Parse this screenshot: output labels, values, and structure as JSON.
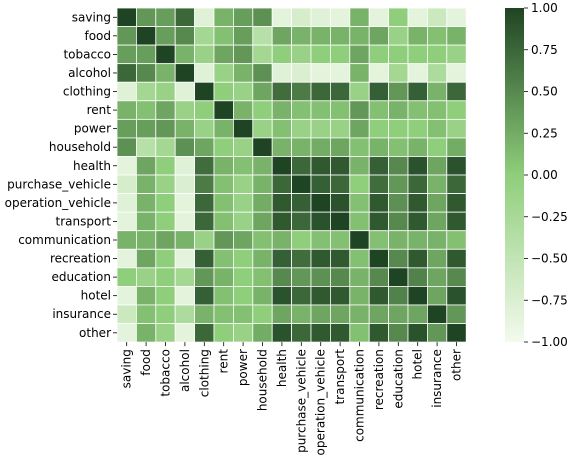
{
  "chart_data": {
    "type": "heatmap",
    "title": "",
    "xlabel": "",
    "ylabel": "",
    "labels": [
      "saving",
      "food",
      "tobacco",
      "alcohol",
      "clothing",
      "rent",
      "power",
      "household",
      "health",
      "purchase_vehicle",
      "operation_vehicle",
      "transport",
      "communication",
      "recreation",
      "education",
      "hotel",
      "insurance",
      "other"
    ],
    "matrix": [
      [
        1.0,
        0.4,
        0.35,
        0.75,
        -0.8,
        0.2,
        0.35,
        0.45,
        -0.85,
        -0.7,
        -0.8,
        -0.85,
        0.2,
        -0.85,
        0.0,
        -0.85,
        -0.6,
        -0.85
      ],
      [
        0.4,
        1.0,
        0.35,
        0.5,
        -0.2,
        0.1,
        0.35,
        -0.4,
        0.3,
        0.2,
        0.2,
        0.2,
        0.2,
        0.3,
        -0.1,
        0.2,
        0.1,
        0.2
      ],
      [
        0.35,
        0.35,
        1.0,
        0.2,
        -0.1,
        0.3,
        0.4,
        -0.2,
        0.0,
        -0.1,
        0.0,
        0.0,
        0.3,
        0.0,
        0.0,
        0.0,
        0.0,
        -0.1
      ],
      [
        0.75,
        0.5,
        0.2,
        1.0,
        -0.8,
        -0.1,
        0.2,
        0.45,
        -0.8,
        -0.75,
        -0.85,
        -0.85,
        0.2,
        -0.85,
        -0.2,
        -0.85,
        -0.3,
        -0.85
      ],
      [
        -0.8,
        -0.2,
        -0.1,
        -0.8,
        1.0,
        0.0,
        -0.1,
        0.3,
        0.7,
        0.6,
        0.75,
        0.75,
        -0.1,
        0.8,
        0.4,
        0.8,
        0.2,
        0.75
      ],
      [
        0.2,
        0.1,
        0.3,
        -0.1,
        0.0,
        1.0,
        0.2,
        0.0,
        0.2,
        0.1,
        0.1,
        0.1,
        0.4,
        0.1,
        0.2,
        0.1,
        0.1,
        0.0
      ],
      [
        0.35,
        0.35,
        0.4,
        0.2,
        -0.1,
        0.2,
        1.0,
        -0.1,
        0.1,
        -0.1,
        -0.1,
        -0.1,
        0.3,
        0.0,
        0.0,
        0.0,
        0.1,
        -0.1
      ],
      [
        0.45,
        -0.4,
        -0.2,
        0.45,
        0.3,
        0.0,
        -0.1,
        1.0,
        0.2,
        0.2,
        0.25,
        0.3,
        0.1,
        0.2,
        0.1,
        0.2,
        0.0,
        0.25
      ],
      [
        -0.85,
        0.3,
        0.0,
        -0.8,
        0.7,
        0.2,
        0.1,
        0.2,
        1.0,
        0.75,
        0.85,
        0.85,
        0.2,
        0.8,
        0.5,
        0.9,
        0.3,
        0.9
      ],
      [
        -0.7,
        0.2,
        -0.1,
        -0.75,
        0.6,
        0.1,
        -0.1,
        0.2,
        0.75,
        1.0,
        0.8,
        0.75,
        0.0,
        0.7,
        0.4,
        0.75,
        0.2,
        0.75
      ],
      [
        -0.8,
        0.2,
        0.0,
        -0.85,
        0.75,
        0.1,
        -0.1,
        0.25,
        0.85,
        0.8,
        1.0,
        0.9,
        0.1,
        0.85,
        0.45,
        0.85,
        0.3,
        0.85
      ],
      [
        -0.85,
        0.2,
        0.0,
        -0.85,
        0.75,
        0.1,
        -0.1,
        0.3,
        0.85,
        0.75,
        0.9,
        1.0,
        0.1,
        0.85,
        0.5,
        0.85,
        0.3,
        0.85
      ],
      [
        0.2,
        0.2,
        0.3,
        0.2,
        -0.1,
        0.4,
        0.3,
        0.1,
        0.2,
        0.0,
        0.1,
        0.1,
        1.0,
        0.1,
        0.2,
        0.2,
        0.2,
        0.1
      ],
      [
        -0.85,
        0.3,
        0.0,
        -0.85,
        0.8,
        0.1,
        0.0,
        0.2,
        0.8,
        0.7,
        0.85,
        0.85,
        0.1,
        1.0,
        0.5,
        0.85,
        0.3,
        0.85
      ],
      [
        0.0,
        -0.1,
        0.0,
        -0.2,
        0.4,
        0.2,
        0.0,
        0.1,
        0.5,
        0.4,
        0.45,
        0.5,
        0.2,
        0.5,
        1.0,
        0.55,
        0.3,
        0.5
      ],
      [
        -0.85,
        0.2,
        0.0,
        -0.85,
        0.8,
        0.1,
        0.0,
        0.2,
        0.9,
        0.75,
        0.85,
        0.85,
        0.2,
        0.85,
        0.55,
        1.0,
        0.3,
        0.9
      ],
      [
        -0.6,
        0.1,
        0.0,
        -0.3,
        0.2,
        0.1,
        0.1,
        0.0,
        0.3,
        0.2,
        0.3,
        0.3,
        0.2,
        0.3,
        0.3,
        0.3,
        1.0,
        0.4
      ],
      [
        -0.85,
        0.2,
        -0.1,
        -0.85,
        0.75,
        0.0,
        -0.1,
        0.25,
        0.9,
        0.75,
        0.85,
        0.85,
        0.1,
        0.85,
        0.5,
        0.9,
        0.4,
        1.0
      ]
    ],
    "vmin": -1.0,
    "vmax": 1.0,
    "colorbar": {
      "ticks": [
        1.0,
        0.75,
        0.5,
        0.25,
        0.0,
        -0.25,
        -0.5,
        -0.75,
        -1.0
      ],
      "tick_labels": [
        "1.00",
        "0.75",
        "0.50",
        "0.25",
        "0.00",
        "−0.25",
        "−0.50",
        "−0.75",
        "−1.00"
      ]
    },
    "colormap": {
      "low": "#f3faed",
      "mid": "#8fce7b",
      "high": "#1f4423"
    },
    "grid_line_color": "#ffffff",
    "legend": "colorbar-right"
  }
}
